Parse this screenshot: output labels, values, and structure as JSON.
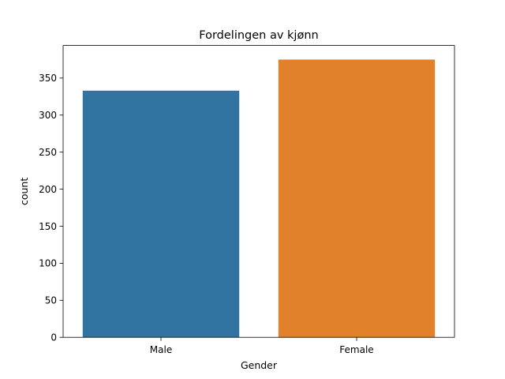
{
  "chart_data": {
    "type": "bar",
    "title": "Fordelingen av kjønn",
    "xlabel": "Gender",
    "ylabel": "count",
    "categories": [
      "Male",
      "Female"
    ],
    "values": [
      333,
      375
    ],
    "colors": [
      "#3274a1",
      "#e1812c"
    ],
    "ylim": [
      0,
      394
    ],
    "yticks": [
      0,
      50,
      100,
      150,
      200,
      250,
      300,
      350
    ],
    "grid": false,
    "legend": "none"
  }
}
